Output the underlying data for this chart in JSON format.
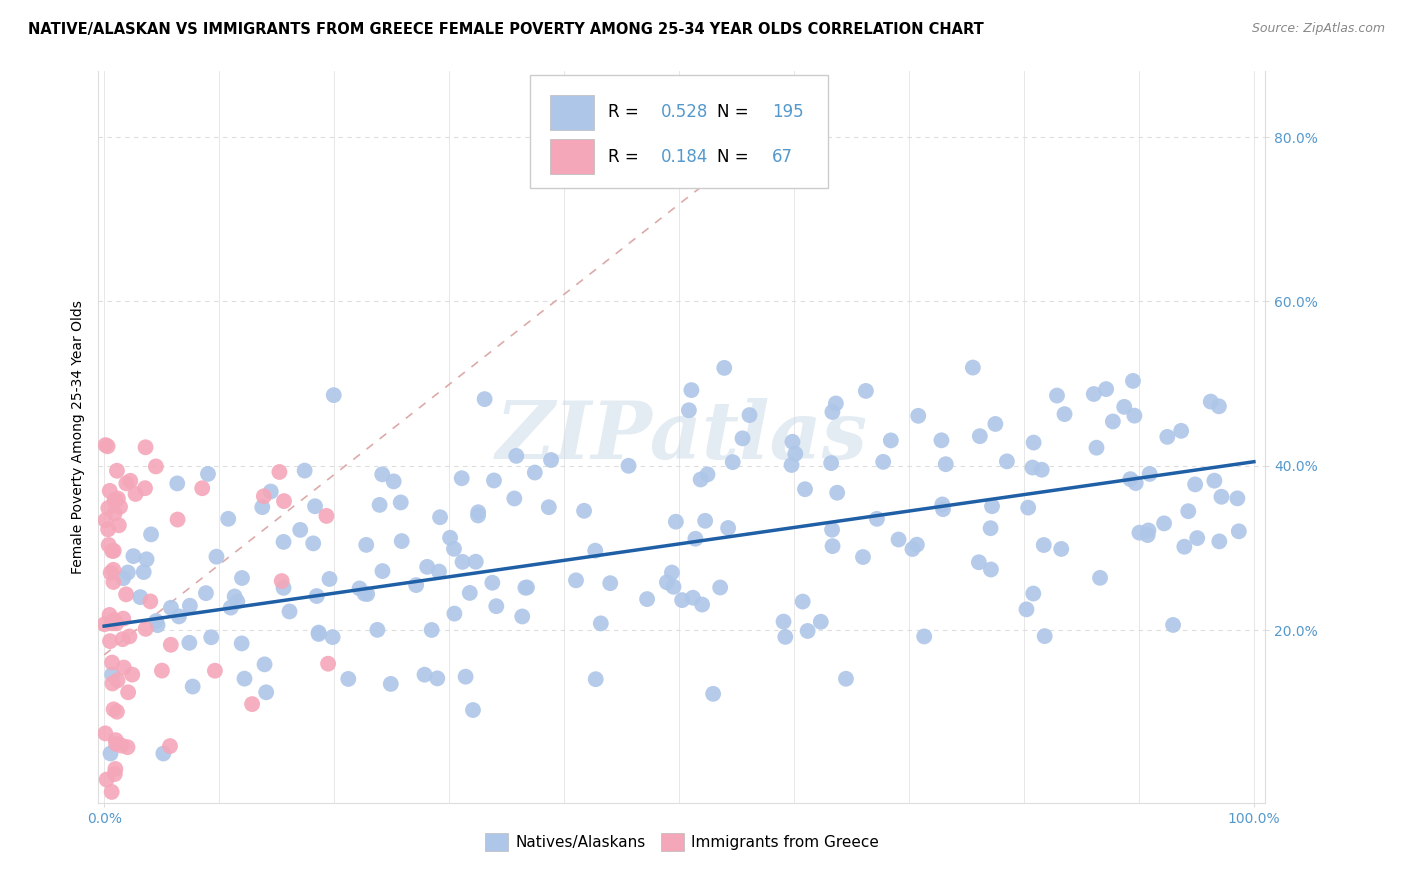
{
  "title": "NATIVE/ALASKAN VS IMMIGRANTS FROM GREECE FEMALE POVERTY AMONG 25-34 YEAR OLDS CORRELATION CHART",
  "source": "Source: ZipAtlas.com",
  "ylabel": "Female Poverty Among 25-34 Year Olds",
  "blue_R": 0.528,
  "blue_N": 195,
  "pink_R": 0.184,
  "pink_N": 67,
  "blue_color": "#aec6e8",
  "pink_color": "#f4a7b9",
  "blue_line_color": "#1f5fa6",
  "pink_line_color": "#e8668a",
  "diag_color": "#ddaaaa",
  "grid_color": "#dddddd",
  "tick_color": "#5599cc",
  "title_fontsize": 10.5,
  "axis_label_fontsize": 10,
  "tick_fontsize": 10,
  "legend_fontsize": 13,
  "watermark": "ZIPatlas",
  "watermark_color": "#c8d8e8",
  "blue_seed": 42,
  "pink_seed": 7
}
